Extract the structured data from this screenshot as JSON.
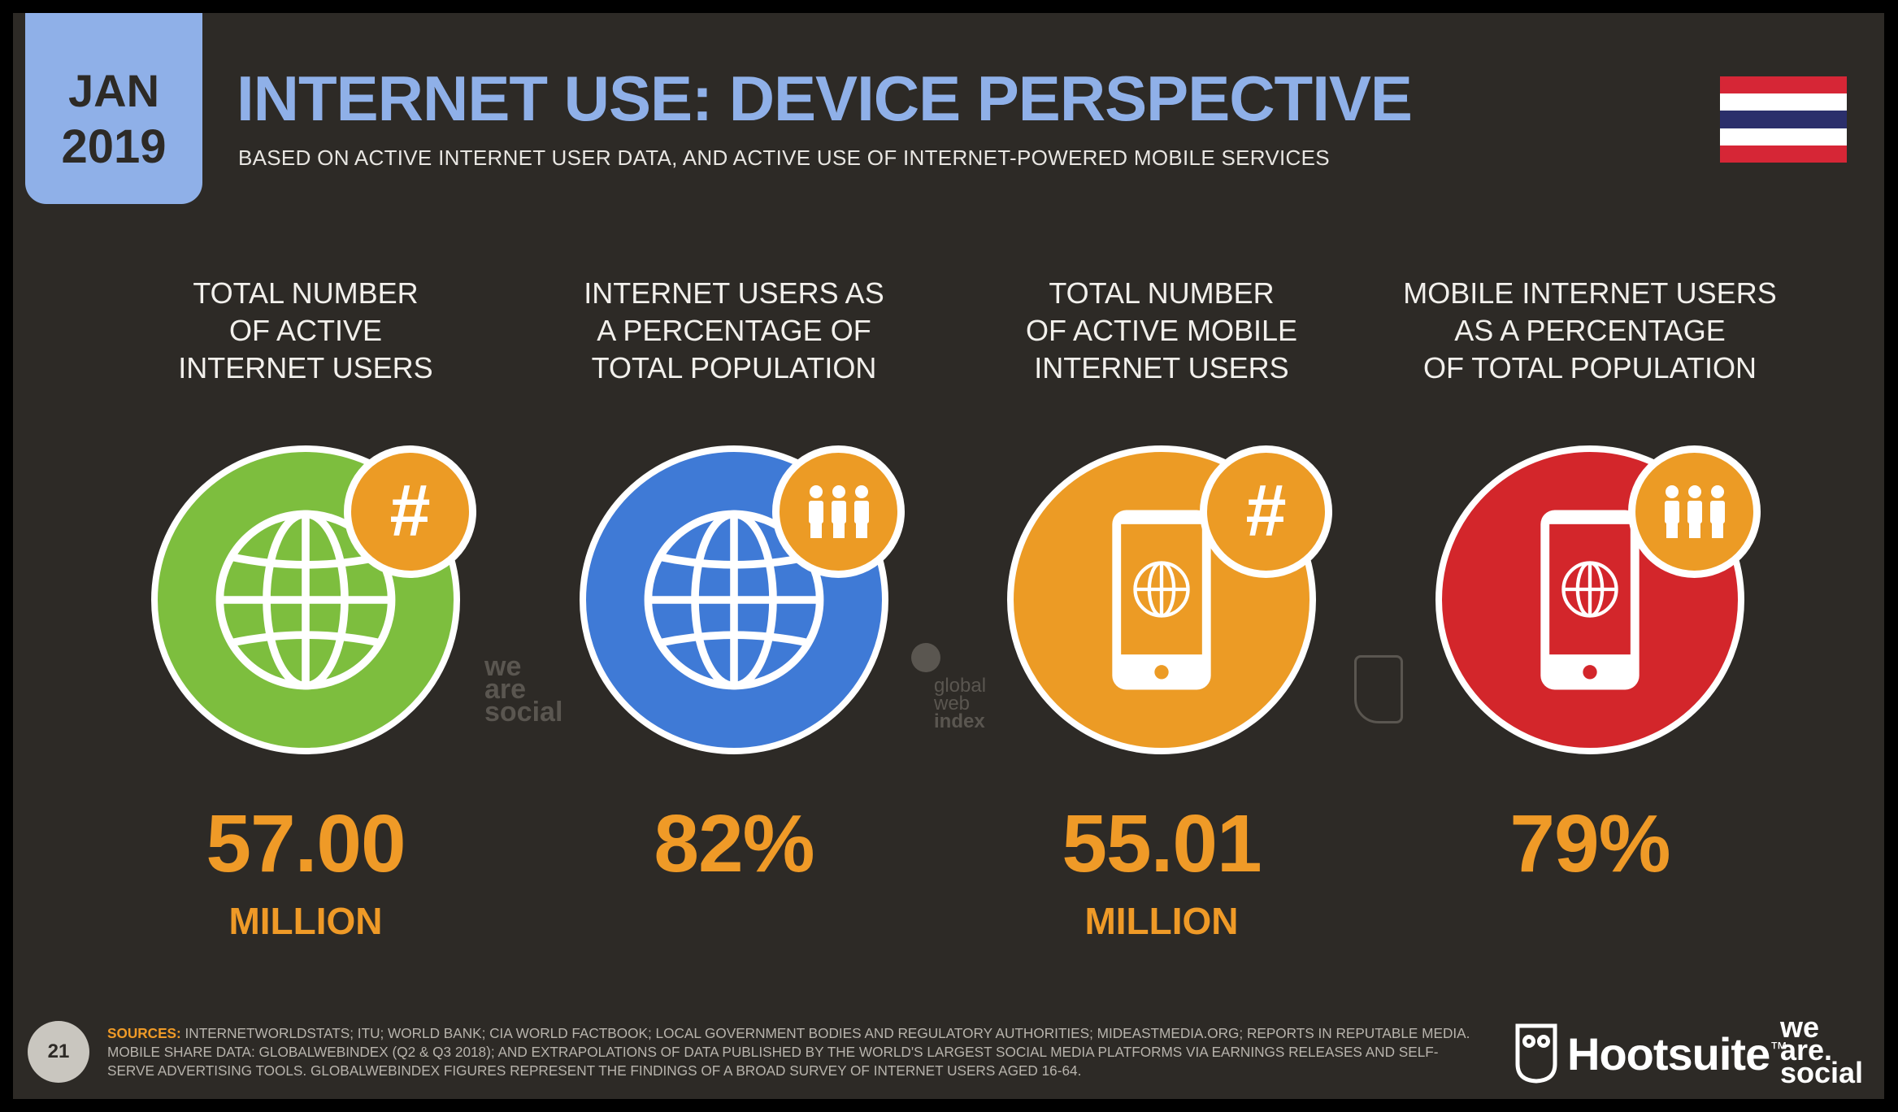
{
  "header": {
    "date_month": "JAN",
    "date_year": "2019",
    "title": "INTERNET USE: DEVICE PERSPECTIVE",
    "subtitle": "BASED ON ACTIVE INTERNET USER DATA, AND ACTIVE USE OF INTERNET-POWERED MOBILE SERVICES"
  },
  "flag": {
    "colors": [
      "#d62636",
      "#ffffff",
      "#2b2f6b",
      "#ffffff",
      "#d62636"
    ]
  },
  "stats": [
    {
      "label_lines": [
        "TOTAL NUMBER",
        "OF ACTIVE",
        "INTERNET USERS"
      ],
      "value": "57.00",
      "unit": "MILLION",
      "color": "#7dbe3e",
      "icon": "globe-icon",
      "badge_icon": "hash-icon",
      "badge_text": "#"
    },
    {
      "label_lines": [
        "INTERNET USERS AS",
        "A PERCENTAGE OF",
        "TOTAL POPULATION"
      ],
      "value": "82%",
      "unit": "",
      "color": "#3f7ad6",
      "icon": "globe-icon",
      "badge_icon": "people-icon",
      "badge_text": ""
    },
    {
      "label_lines": [
        "TOTAL NUMBER",
        "OF ACTIVE MOBILE",
        "INTERNET USERS"
      ],
      "value": "55.01",
      "unit": "MILLION",
      "color": "#ec9b25",
      "icon": "mobile-phone-icon",
      "badge_icon": "hash-icon",
      "badge_text": "#"
    },
    {
      "label_lines": [
        "MOBILE INTERNET USERS",
        "AS A PERCENTAGE",
        "OF TOTAL POPULATION"
      ],
      "value": "79%",
      "unit": "",
      "color": "#d3262b",
      "icon": "mobile-phone-icon",
      "badge_icon": "people-icon",
      "badge_text": ""
    }
  ],
  "watermarks": {
    "we_are_social": [
      "we",
      "are",
      "social"
    ],
    "global_web_index": [
      "global",
      "web",
      "index"
    ]
  },
  "footer": {
    "page_number": "21",
    "sources_label": "SOURCES:",
    "sources_text": " INTERNETWORLDSTATS; ITU; WORLD BANK; CIA WORLD FACTBOOK; LOCAL GOVERNMENT BODIES AND REGULATORY AUTHORITIES; MIDEASTMEDIA.ORG; REPORTS IN REPUTABLE MEDIA. MOBILE SHARE DATA: GLOBALWEBINDEX (Q2 & Q3 2018); AND EXTRAPOLATIONS OF DATA PUBLISHED BY THE WORLD'S LARGEST SOCIAL MEDIA PLATFORMS VIA EARNINGS RELEASES AND SELF-SERVE ADVERTISING TOOLS. GLOBALWEBINDEX FIGURES REPRESENT THE FINDINGS OF A BROAD SURVEY OF INTERNET USERS AGED 16-64.",
    "hootsuite": "Hootsuite",
    "hootsuite_tm": "™",
    "we_are_social": [
      "we",
      "are.",
      "social"
    ]
  }
}
